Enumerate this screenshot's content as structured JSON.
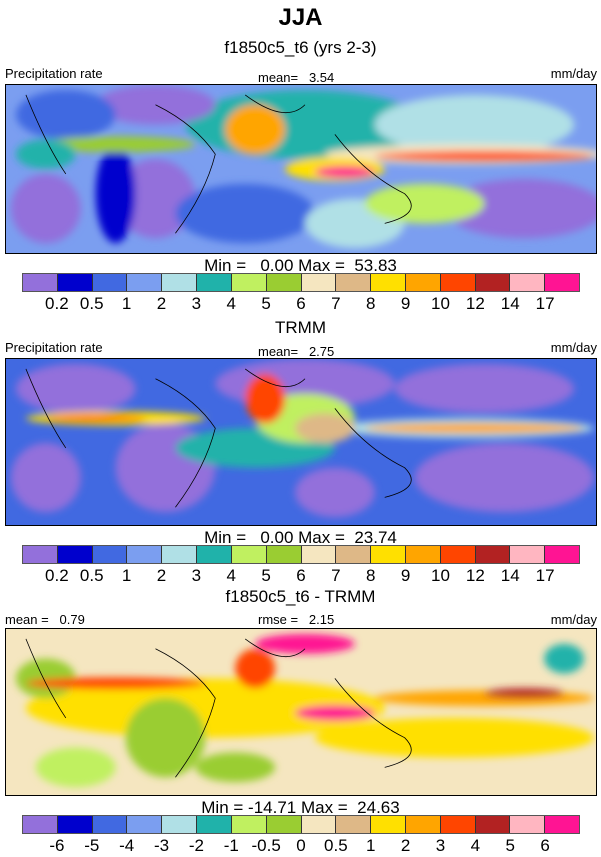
{
  "title": "JJA",
  "colors": [
    "#9370DB",
    "#0000CD",
    "#4169E1",
    "#7B9EF0",
    "#B0E0E6",
    "#20B2AA",
    "#C0F060",
    "#9ACD32",
    "#F5E6C0",
    "#DEB887",
    "#FFE000",
    "#FFA500",
    "#FF4500",
    "#B22222",
    "#FFB6C1",
    "#FF1493"
  ],
  "panels": [
    {
      "title": "f1850c5_t6 (yrs 2-3)",
      "left": "Precipitation rate",
      "center": "mean=   3.54",
      "right": "mm/day",
      "minmax": "Min =   0.00 Max =  53.83",
      "levels": [
        "0.2",
        "0.5",
        "1",
        "2",
        "3",
        "4",
        "5",
        "6",
        "7",
        "8",
        "9",
        "10",
        "12",
        "14",
        "17"
      ]
    },
    {
      "title": "TRMM",
      "left": "Precipitation rate",
      "center": "mean=   2.75",
      "right": "mm/day",
      "minmax": "Min =   0.00 Max =  23.74",
      "levels": [
        "0.2",
        "0.5",
        "1",
        "2",
        "3",
        "4",
        "5",
        "6",
        "7",
        "8",
        "9",
        "10",
        "12",
        "14",
        "17"
      ]
    },
    {
      "title": "f1850c5_t6 - TRMM",
      "left": "mean =   0.79",
      "center": "rmse =   2.15",
      "right": "mm/day",
      "minmax": "Min = -14.71 Max =  24.63",
      "levels": [
        "-6",
        "-5",
        "-4",
        "-3",
        "-2",
        "-1",
        "-0.5",
        "0",
        "0.5",
        "1",
        "2",
        "3",
        "4",
        "5",
        "6"
      ]
    }
  ]
}
